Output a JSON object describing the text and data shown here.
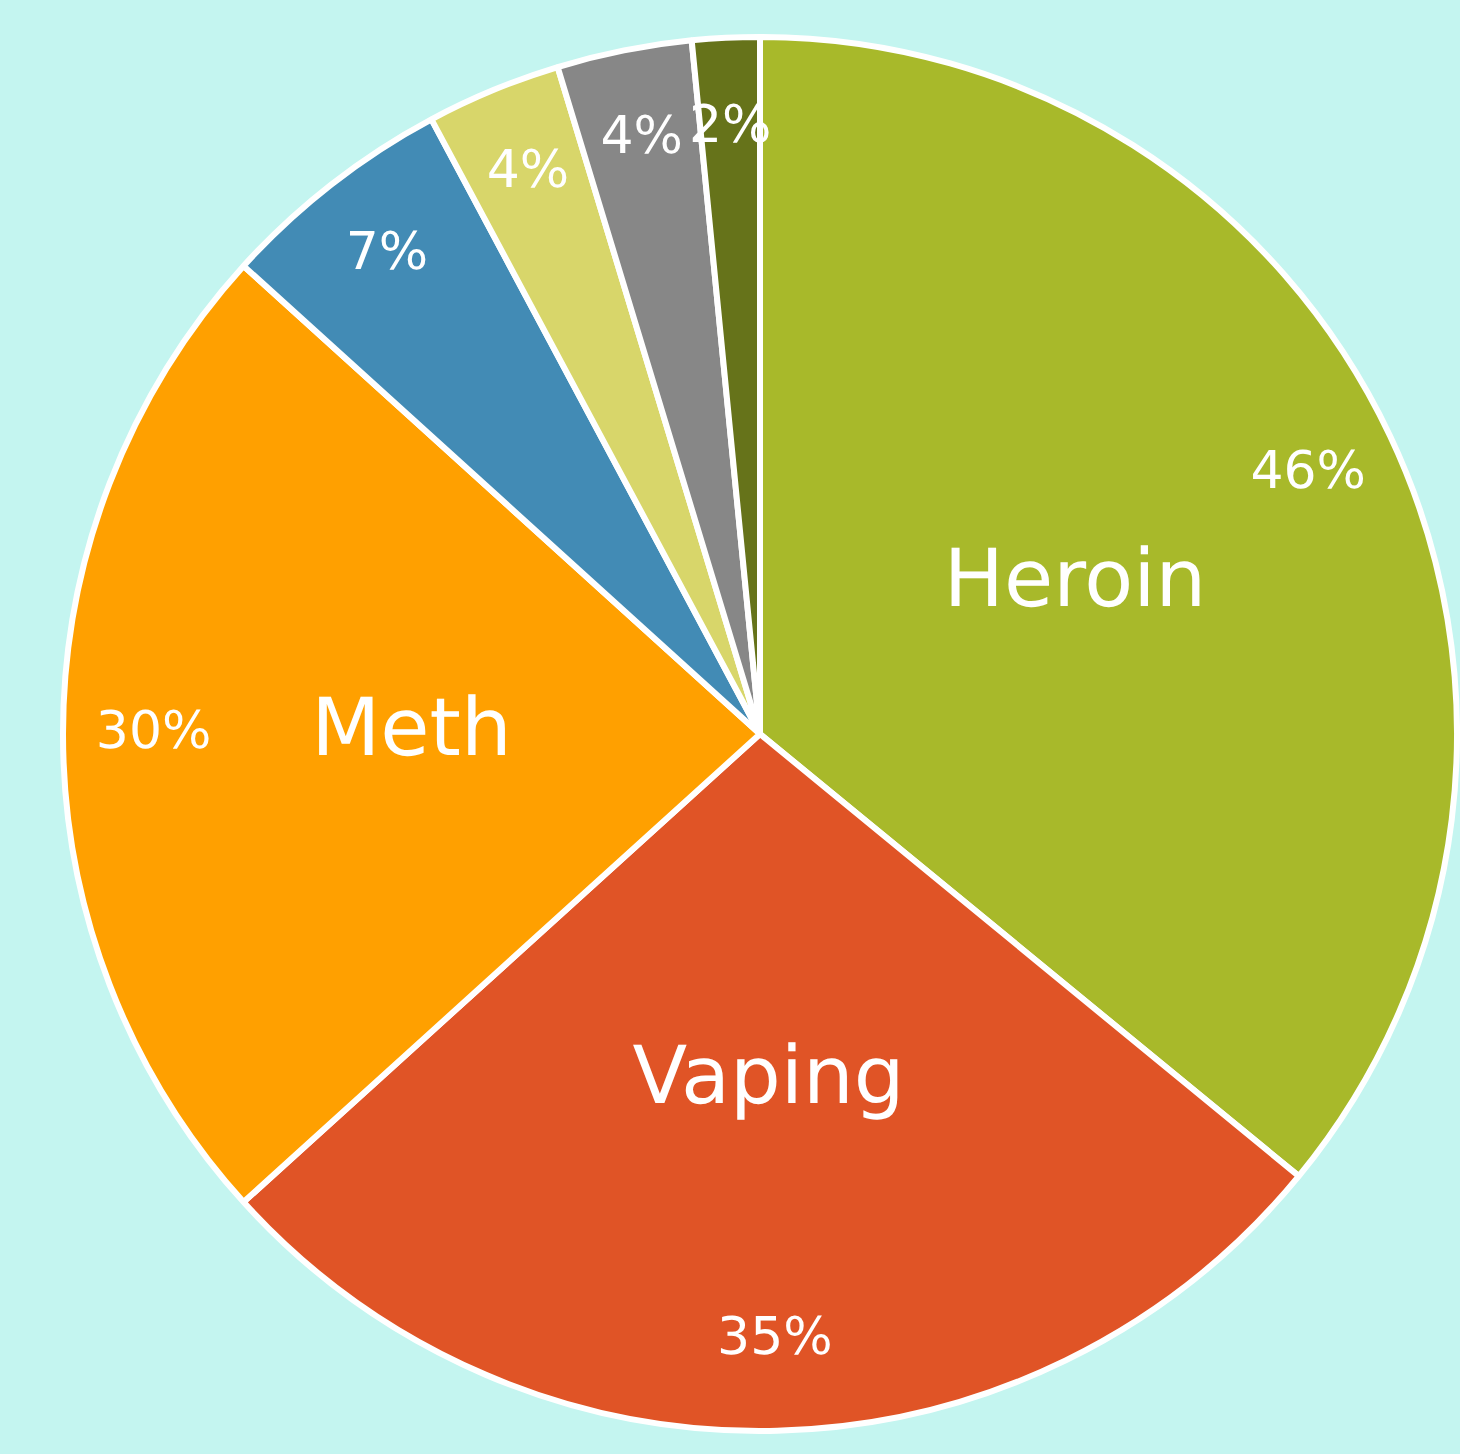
{
  "chart_data": {
    "type": "pie",
    "categories": [
      "Heroin",
      "Vaping",
      "Meth",
      null,
      null,
      null,
      null
    ],
    "values": [
      46,
      35,
      30,
      7,
      4,
      4,
      2
    ],
    "colors": [
      "#a8b92a",
      "#e05426",
      "#ffa000",
      "#428bb5",
      "#d8d66a",
      "#878787",
      "#66731a"
    ],
    "value_labels": [
      "46%",
      "35%",
      "30%",
      "7%",
      "4%",
      "4%",
      "2%"
    ],
    "legend": false
  }
}
